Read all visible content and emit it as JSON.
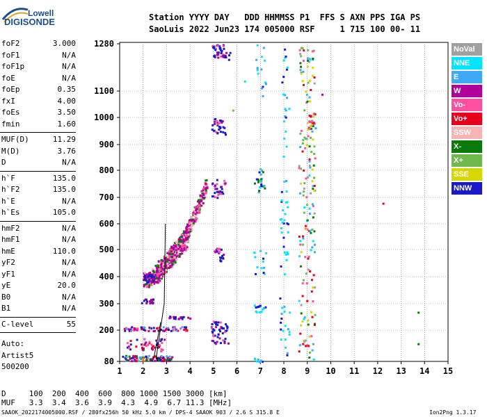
{
  "logo": {
    "line1": "Lowell",
    "line2": "DIGISONDE"
  },
  "header": {
    "row1": "Station YYYY DAY   DDD HHMMSS P1  FFS S AXN PPS IGA PS",
    "row2": "SaoLuis 2022 Jun23 174 005000 RSF     1 715 100 00- 11"
  },
  "params_group1": [
    {
      "k": "foF2",
      "v": "3.000"
    },
    {
      "k": "foF1",
      "v": "N/A"
    },
    {
      "k": "foF1p",
      "v": "N/A"
    },
    {
      "k": "foE",
      "v": "N/A"
    },
    {
      "k": "foEp",
      "v": "0.35"
    },
    {
      "k": "fxI",
      "v": "4.00"
    },
    {
      "k": "foEs",
      "v": "3.50"
    },
    {
      "k": "fmin",
      "v": "1.60"
    }
  ],
  "params_group2": [
    {
      "k": "MUF(D)",
      "v": "11.29"
    },
    {
      "k": "M(D)",
      "v": "3.76"
    },
    {
      "k": "D",
      "v": "N/A"
    }
  ],
  "params_group3": [
    {
      "k": "h`F",
      "v": "135.0"
    },
    {
      "k": "h`F2",
      "v": "135.0"
    },
    {
      "k": "h`E",
      "v": "N/A"
    },
    {
      "k": "h`Es",
      "v": "105.0"
    }
  ],
  "params_group4": [
    {
      "k": "hmF2",
      "v": "N/A"
    },
    {
      "k": "hmF1",
      "v": "N/A"
    },
    {
      "k": "hmE",
      "v": "110.0"
    },
    {
      "k": "yF2",
      "v": "N/A"
    },
    {
      "k": "yF1",
      "v": "N/A"
    },
    {
      "k": "yE",
      "v": "20.0"
    },
    {
      "k": "B0",
      "v": "N/A"
    },
    {
      "k": "B1",
      "v": "N/A"
    }
  ],
  "params_group5": [
    {
      "k": "C-level",
      "v": "55"
    }
  ],
  "auto": {
    "l1": "Auto:",
    "l2": "Artist5",
    "l3": "500200"
  },
  "legend": [
    {
      "label": "NoVal",
      "color": "#a0a0a0"
    },
    {
      "label": "NNE",
      "color": "#00e5ff"
    },
    {
      "label": "E",
      "color": "#3fa9f5"
    },
    {
      "label": "W",
      "color": "#b0009c"
    },
    {
      "label": "Vo-",
      "color": "#ff4fa0"
    },
    {
      "label": "Vo+",
      "color": "#e8001c"
    },
    {
      "label": "SSW",
      "color": "#f5b5b5"
    },
    {
      "label": "X-",
      "color": "#0a7a0a"
    },
    {
      "label": "X+",
      "color": "#6fb84a"
    },
    {
      "label": "SSE",
      "color": "#d6d600"
    },
    {
      "label": "NNW",
      "color": "#1a1ac8"
    }
  ],
  "chart_data": {
    "type": "scatter",
    "title": "",
    "xlabel": "",
    "ylabel": "",
    "x_ticks": [
      "1",
      "2",
      "3",
      "4",
      "5",
      "6",
      "7",
      "8",
      "9",
      "10",
      "11",
      "12",
      "13",
      "14",
      "15"
    ],
    "y_ticks": [
      "80",
      "200",
      "300",
      "400",
      "500",
      "600",
      "700",
      "800",
      "900",
      "1000",
      "1100",
      "1280"
    ],
    "xlim": [
      1,
      15
    ],
    "ylim": [
      80,
      1280
    ]
  },
  "bottom": {
    "row1": "D     100  200  400  600  800 1000 1500 3000 [km]",
    "row2": "MUF   3.3  3.4  3.6  3.9  4.3  4.9  6.7 11.3 [MHz]",
    "footer_left": "SAAOK_2022174005000.RSF / 280fx256h 50 kHz 5.0 km / DPS-4 SAAOK 903 / 2.6 S 315.8 E",
    "footer_right": "Ion2Png 1.3.17"
  }
}
